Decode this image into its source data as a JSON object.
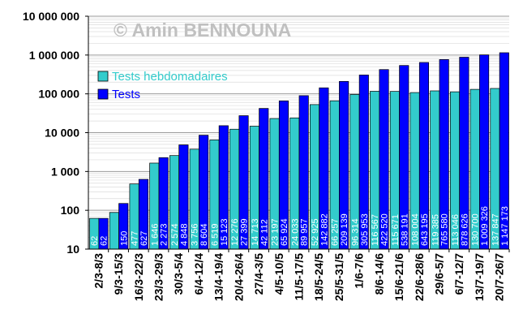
{
  "chart_data": {
    "type": "bar",
    "y_scale": "log",
    "ylim": [
      10,
      10000000
    ],
    "y_tick_labels": [
      "10 000 000",
      "1 000 000",
      "100 000",
      "10 000",
      "1 000",
      "100",
      "10"
    ],
    "grid": "horizontal major and minor",
    "watermark": "© Amin BENNOUNA",
    "legend_placement": "upper-left",
    "categories": [
      "2/3-8/3",
      "9/3-15/3",
      "16/3-22/3",
      "23/3-29/3",
      "30/3-5/4",
      "6/4-12/4",
      "13/4-19/4",
      "20/4-26/4",
      "27/4-3/5",
      "4/5-10/5",
      "11/5-17/5",
      "18/5-24/5",
      "25/5-31/5",
      "1/6-7/6",
      "8/6-14/6",
      "15/6-21/6",
      "22/6-28/6",
      "29/6-5/7",
      "6/7-12/7",
      "13/7-19/7",
      "20/7-26/7"
    ],
    "series": [
      {
        "name": "Tests hebdomadaires",
        "color": "#33cccc",
        "values": [
          62,
          88,
          477,
          1646,
          2574,
          3756,
          6519,
          12276,
          14713,
          23197,
          24033,
          52925,
          66257,
          96314,
          116567,
          115671,
          108004,
          119385,
          113046,
          130700,
          137847
        ],
        "labels": [
          "62",
          "",
          "477",
          "1 646",
          "2 574",
          "3 756",
          "6 519",
          "12 276",
          "14 713",
          "23 197",
          "24 033",
          "52 925",
          "66 257",
          "96 314",
          "116 567",
          "115 671",
          "108 004",
          "119 385",
          "113 046",
          "130 700",
          "137 847"
        ]
      },
      {
        "name": "Tests",
        "color": "#0000ff",
        "values": [
          62,
          150,
          627,
          2273,
          4848,
          8604,
          15123,
          27399,
          42112,
          65924,
          89957,
          142882,
          209139,
          305953,
          422520,
          538191,
          643195,
          765580,
          878626,
          1009326,
          1147173
        ],
        "labels": [
          "62",
          "150",
          "627",
          "2 273",
          "4 848",
          "8 604",
          "15 123",
          "27 399",
          "42 112",
          "65 924",
          "89 957",
          "142 882",
          "209 139",
          "305 953",
          "422 520",
          "538 191",
          "643 195",
          "765 580",
          "878 626",
          "1 009 326",
          "1 147 173"
        ]
      }
    ]
  }
}
